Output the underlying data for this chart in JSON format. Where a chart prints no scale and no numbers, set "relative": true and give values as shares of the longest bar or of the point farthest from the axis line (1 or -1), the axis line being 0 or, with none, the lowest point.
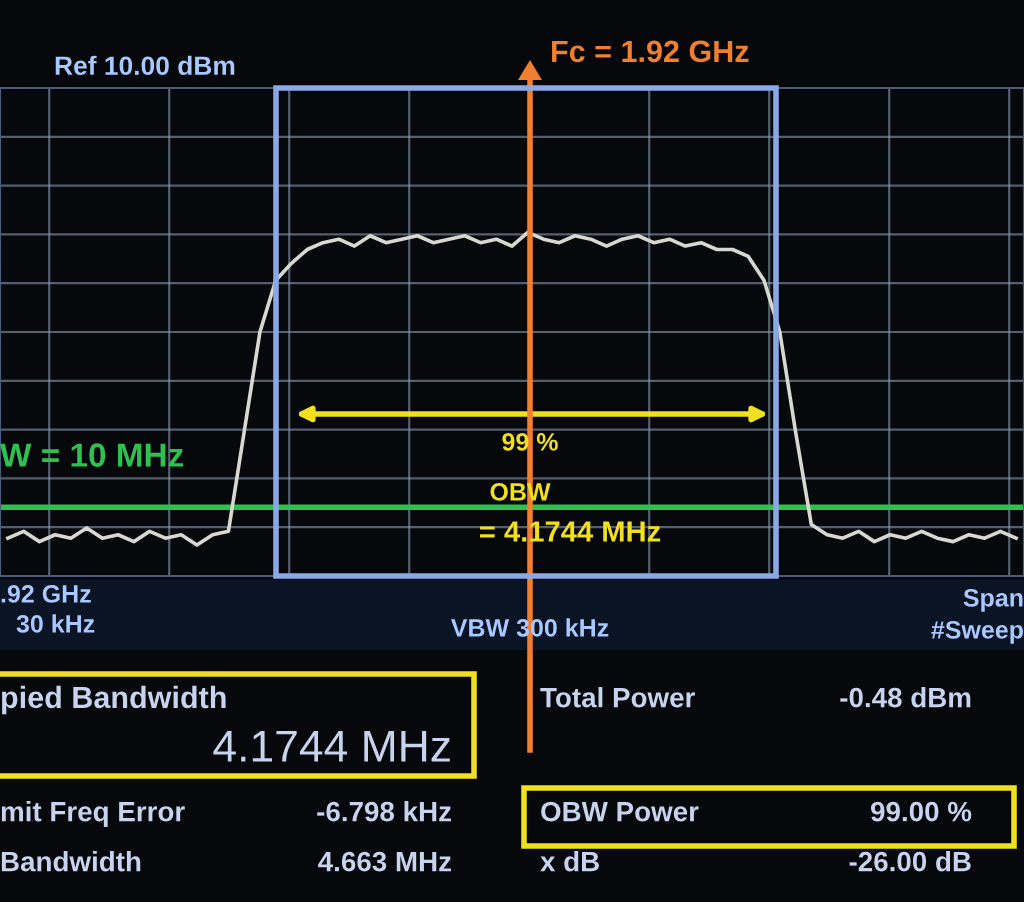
{
  "chart_data": {
    "type": "line",
    "relative": true,
    "grid": true,
    "tick_labels": false,
    "legend": false,
    "marker": "none",
    "line_style": "solid",
    "categories": [
      null,
      null,
      null,
      null,
      null,
      null,
      null,
      null,
      null,
      null,
      null,
      null,
      null,
      null,
      null,
      null,
      null,
      null,
      null,
      null,
      null,
      null,
      null,
      null,
      null,
      null,
      null,
      null,
      null,
      null,
      null,
      null,
      null,
      null,
      null,
      null,
      null,
      null,
      null,
      null,
      null,
      null,
      null,
      null,
      null,
      null,
      null,
      null,
      null,
      null,
      null,
      null,
      null,
      null,
      null,
      null,
      null,
      null,
      null,
      null,
      null,
      null,
      null,
      null,
      null
    ],
    "series": [
      {
        "color": "#d8d8d0",
        "values": [
          0.11,
          0.13,
          0.1,
          0.12,
          0.11,
          0.14,
          0.11,
          0.12,
          0.1,
          0.13,
          0.11,
          0.12,
          0.09,
          0.12,
          0.13,
          0.42,
          0.71,
          0.86,
          0.91,
          0.95,
          0.97,
          0.98,
          0.96,
          0.99,
          0.97,
          0.98,
          0.99,
          0.97,
          0.98,
          0.99,
          0.97,
          0.98,
          0.96,
          1.0,
          0.98,
          0.97,
          0.99,
          0.98,
          0.96,
          0.98,
          0.99,
          0.97,
          0.98,
          0.96,
          0.97,
          0.95,
          0.95,
          0.93,
          0.86,
          0.71,
          0.42,
          0.15,
          0.12,
          0.11,
          0.13,
          0.1,
          0.12,
          0.11,
          0.13,
          0.11,
          0.1,
          0.12,
          0.11,
          0.13,
          0.11
        ]
      }
    ],
    "ref_lines": [
      {
        "axis": "y",
        "value": 0.2,
        "color": "#30c050"
      }
    ],
    "annotations": [
      "Fc = 1.92 GHz",
      "W = 10 MHz",
      "Ref 10.00 dBm",
      "99 %",
      "OBW",
      "= 4.1744 MHz",
      ".92 GHz",
      "30 kHz",
      "VBW 300 kHz",
      "Span",
      "#Sweep",
      "pied Bandwidth",
      "4.1744 MHz",
      "Total Power",
      "-0.48 dBm",
      "mit Freq Error",
      "-6.798 kHz",
      "OBW Power",
      "99.00 %",
      "Bandwidth",
      "4.663 MHz",
      "x dB",
      "-26.00 dB"
    ]
  }
}
